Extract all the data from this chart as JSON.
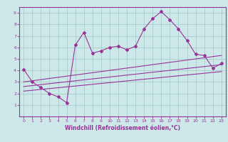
{
  "xlabel": "Windchill (Refroidissement éolien,°C)",
  "ylabel": "",
  "background_color": "#cce8e8",
  "grid_color": "#aacccc",
  "line_color": "#993399",
  "spine_color": "#993399",
  "xlim": [
    -0.5,
    23.5
  ],
  "ylim": [
    0,
    9.5
  ],
  "xticks": [
    0,
    1,
    2,
    3,
    4,
    5,
    6,
    7,
    8,
    9,
    10,
    11,
    12,
    13,
    14,
    15,
    16,
    17,
    18,
    19,
    20,
    21,
    22,
    23
  ],
  "yticks": [
    1,
    2,
    3,
    4,
    5,
    6,
    7,
    8,
    9
  ],
  "scatter_x": [
    0,
    1,
    2,
    3,
    4,
    5,
    6,
    7,
    8,
    9,
    10,
    11,
    12,
    13,
    14,
    15,
    16,
    17,
    18,
    19,
    20,
    21,
    22,
    23
  ],
  "scatter_y": [
    4.1,
    3.0,
    2.5,
    2.0,
    1.7,
    1.2,
    6.2,
    7.3,
    5.5,
    5.7,
    6.0,
    6.1,
    5.8,
    6.1,
    7.6,
    8.5,
    9.1,
    8.4,
    7.6,
    6.6,
    5.4,
    5.3,
    4.2,
    4.6
  ],
  "line1_x": [
    0,
    23
  ],
  "line1_y": [
    3.0,
    5.3
  ],
  "line2_x": [
    0,
    23
  ],
  "line2_y": [
    2.6,
    4.5
  ],
  "line3_x": [
    0,
    23
  ],
  "line3_y": [
    2.2,
    3.9
  ],
  "tick_fontsize": 4.5,
  "xlabel_fontsize": 5.5,
  "marker_size": 2.0
}
